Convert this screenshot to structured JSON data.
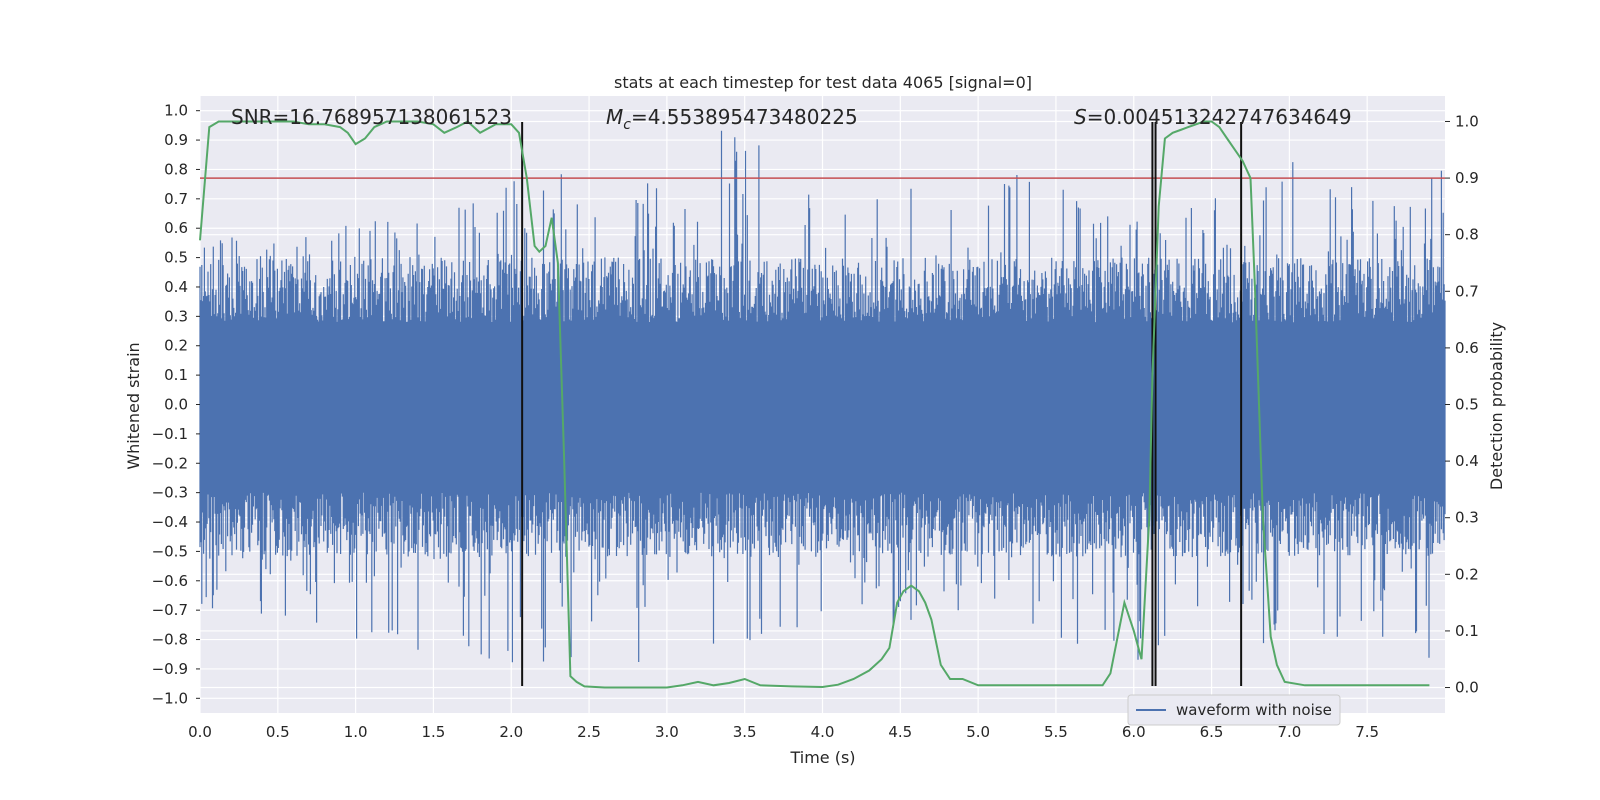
{
  "chart_data": {
    "type": "line",
    "title": "stats at each timestep for test data 4065 [signal=0]",
    "xlabel": "Time (s)",
    "ylabel": "Whitened strain",
    "y2label": "Detection probability",
    "xlim": [
      0.0,
      8.0
    ],
    "ylim": [
      -1.05,
      1.05
    ],
    "y2lim": [
      -0.045,
      1.045
    ],
    "xticks": [
      "0.0",
      "0.5",
      "1.0",
      "1.5",
      "2.0",
      "2.5",
      "3.0",
      "3.5",
      "4.0",
      "4.5",
      "5.0",
      "5.5",
      "6.0",
      "6.5",
      "7.0",
      "7.5"
    ],
    "yticks": [
      "1.0",
      "0.9",
      "0.8",
      "0.7",
      "0.6",
      "0.5",
      "0.4",
      "0.3",
      "0.2",
      "0.1",
      "0.0",
      "−0.1",
      "−0.2",
      "−0.3",
      "−0.4",
      "−0.5",
      "−0.6",
      "−0.7",
      "−0.8",
      "−0.9",
      "−1.0"
    ],
    "y2ticks": [
      "1.0",
      "0.9",
      "0.8",
      "0.7",
      "0.6",
      "0.5",
      "0.4",
      "0.3",
      "0.2",
      "0.1",
      "0.0"
    ],
    "annotations": {
      "snr": "SNR=16.768957138061523",
      "mc_symbol": "M",
      "mc_sub": "c",
      "mc_value": "=4.553895473480225",
      "s_symbol": "S",
      "s_value": "=0.004513242747634649"
    },
    "legend": {
      "location": "lower-right",
      "entries": [
        {
          "name": "waveform with noise",
          "color": "#4c72b0"
        }
      ]
    },
    "grid": true,
    "threshold_line": {
      "y2": 0.9,
      "color": "#c44e52"
    },
    "vertical_lines_s": [
      2.07,
      6.12,
      6.14,
      6.69
    ],
    "series": [
      {
        "name": "waveform with noise",
        "axis": "left",
        "color": "#4c72b0",
        "kind": "noise",
        "x_range": [
          0.0,
          8.0
        ],
        "upper_envelope": [
          0.55,
          0.6,
          0.62,
          0.66,
          0.88,
          0.63,
          0.97,
          0.9,
          0.82,
          0.68,
          0.84,
          0.65,
          0.69,
          0.86,
          0.78,
          0.8
        ],
        "lower_envelope": [
          -0.69,
          -0.8,
          -0.8,
          -0.87,
          -0.88,
          -0.88,
          -0.87,
          -0.78,
          -0.8,
          -0.75,
          -0.75,
          -0.95,
          -0.78,
          -0.83,
          -0.78,
          -0.95
        ]
      },
      {
        "name": "detection probability",
        "axis": "right",
        "color": "#55a868",
        "x": [
          0.0,
          0.06,
          0.12,
          0.2,
          0.3,
          0.4,
          0.5,
          0.6,
          0.7,
          0.8,
          0.9,
          0.95,
          1.0,
          1.06,
          1.12,
          1.2,
          1.3,
          1.4,
          1.5,
          1.57,
          1.65,
          1.72,
          1.8,
          1.9,
          2.0,
          2.05,
          2.1,
          2.15,
          2.18,
          2.22,
          2.26,
          2.3,
          2.34,
          2.38,
          2.42,
          2.47,
          2.6,
          2.8,
          3.0,
          3.1,
          3.2,
          3.3,
          3.4,
          3.5,
          3.6,
          3.8,
          4.0,
          4.1,
          4.2,
          4.3,
          4.38,
          4.43,
          4.48,
          4.52,
          4.57,
          4.62,
          4.66,
          4.7,
          4.76,
          4.82,
          4.9,
          5.0,
          5.2,
          5.4,
          5.6,
          5.7,
          5.75,
          5.8,
          5.85,
          5.94,
          6.0,
          6.05,
          6.1,
          6.12,
          6.16,
          6.2,
          6.25,
          6.3,
          6.35,
          6.4,
          6.45,
          6.5,
          6.55,
          6.6,
          6.65,
          6.7,
          6.75,
          6.78,
          6.83,
          6.88,
          6.92,
          6.97,
          7.1,
          7.3,
          7.5,
          7.7,
          7.9
        ],
        "y": [
          0.79,
          0.99,
          1.0,
          1.0,
          1.0,
          1.0,
          1.0,
          1.0,
          0.995,
          0.995,
          0.99,
          0.98,
          0.96,
          0.97,
          0.99,
          1.0,
          1.0,
          1.0,
          0.995,
          0.98,
          0.99,
          1.0,
          0.98,
          0.995,
          0.995,
          0.98,
          0.9,
          0.78,
          0.77,
          0.78,
          0.83,
          0.75,
          0.4,
          0.02,
          0.01,
          0.002,
          0.0,
          0.0,
          0.0,
          0.004,
          0.01,
          0.004,
          0.008,
          0.015,
          0.004,
          0.002,
          0.001,
          0.005,
          0.015,
          0.03,
          0.05,
          0.07,
          0.15,
          0.17,
          0.18,
          0.17,
          0.15,
          0.12,
          0.04,
          0.015,
          0.015,
          0.004,
          0.004,
          0.004,
          0.004,
          0.004,
          0.004,
          0.004,
          0.025,
          0.15,
          0.1,
          0.05,
          0.3,
          0.55,
          0.85,
          0.97,
          0.98,
          0.985,
          0.99,
          0.995,
          1.0,
          1.0,
          0.99,
          0.97,
          0.95,
          0.93,
          0.9,
          0.7,
          0.3,
          0.09,
          0.04,
          0.01,
          0.004,
          0.004,
          0.004,
          0.004,
          0.004
        ]
      }
    ]
  }
}
